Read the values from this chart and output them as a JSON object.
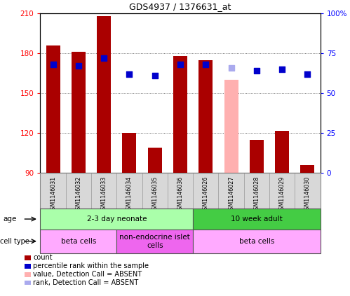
{
  "title": "GDS4937 / 1376631_at",
  "samples": [
    "GSM1146031",
    "GSM1146032",
    "GSM1146033",
    "GSM1146034",
    "GSM1146035",
    "GSM1146036",
    "GSM1146026",
    "GSM1146027",
    "GSM1146028",
    "GSM1146029",
    "GSM1146030"
  ],
  "bar_values": [
    186,
    181,
    208,
    120,
    109,
    178,
    175,
    160,
    115,
    122,
    96
  ],
  "bar_colors": [
    "#aa0000",
    "#aa0000",
    "#aa0000",
    "#aa0000",
    "#aa0000",
    "#aa0000",
    "#aa0000",
    "#ffb0b0",
    "#aa0000",
    "#aa0000",
    "#aa0000"
  ],
  "dot_values_pct": [
    68,
    67,
    72,
    62,
    61,
    68,
    68,
    66,
    64,
    65,
    62
  ],
  "dot_colors": [
    "#0000cc",
    "#0000cc",
    "#0000cc",
    "#0000cc",
    "#0000cc",
    "#0000cc",
    "#0000cc",
    "#aaaaee",
    "#0000cc",
    "#0000cc",
    "#0000cc"
  ],
  "ylim_left": [
    90,
    210
  ],
  "ylim_right": [
    0,
    100
  ],
  "yticks_left": [
    90,
    120,
    150,
    180,
    210
  ],
  "yticks_right": [
    0,
    25,
    50,
    75,
    100
  ],
  "age_groups": [
    {
      "label": "2-3 day neonate",
      "start": 0,
      "end": 6,
      "color": "#aaffaa"
    },
    {
      "label": "10 week adult",
      "start": 6,
      "end": 11,
      "color": "#44cc44"
    }
  ],
  "cell_type_groups": [
    {
      "label": "beta cells",
      "start": 0,
      "end": 3,
      "color": "#ffaaff"
    },
    {
      "label": "non-endocrine islet\ncells",
      "start": 3,
      "end": 6,
      "color": "#ee66ee"
    },
    {
      "label": "beta cells",
      "start": 6,
      "end": 11,
      "color": "#ffaaff"
    }
  ],
  "legend_items": [
    {
      "color": "#aa0000",
      "label": "count"
    },
    {
      "color": "#0000cc",
      "label": "percentile rank within the sample"
    },
    {
      "color": "#ffb0b0",
      "label": "value, Detection Call = ABSENT"
    },
    {
      "color": "#aaaaee",
      "label": "rank, Detection Call = ABSENT"
    }
  ],
  "bar_width": 0.55,
  "dot_size": 40,
  "background_color": "#ffffff",
  "plot_bg_color": "#ffffff",
  "grid_color": "#555555"
}
